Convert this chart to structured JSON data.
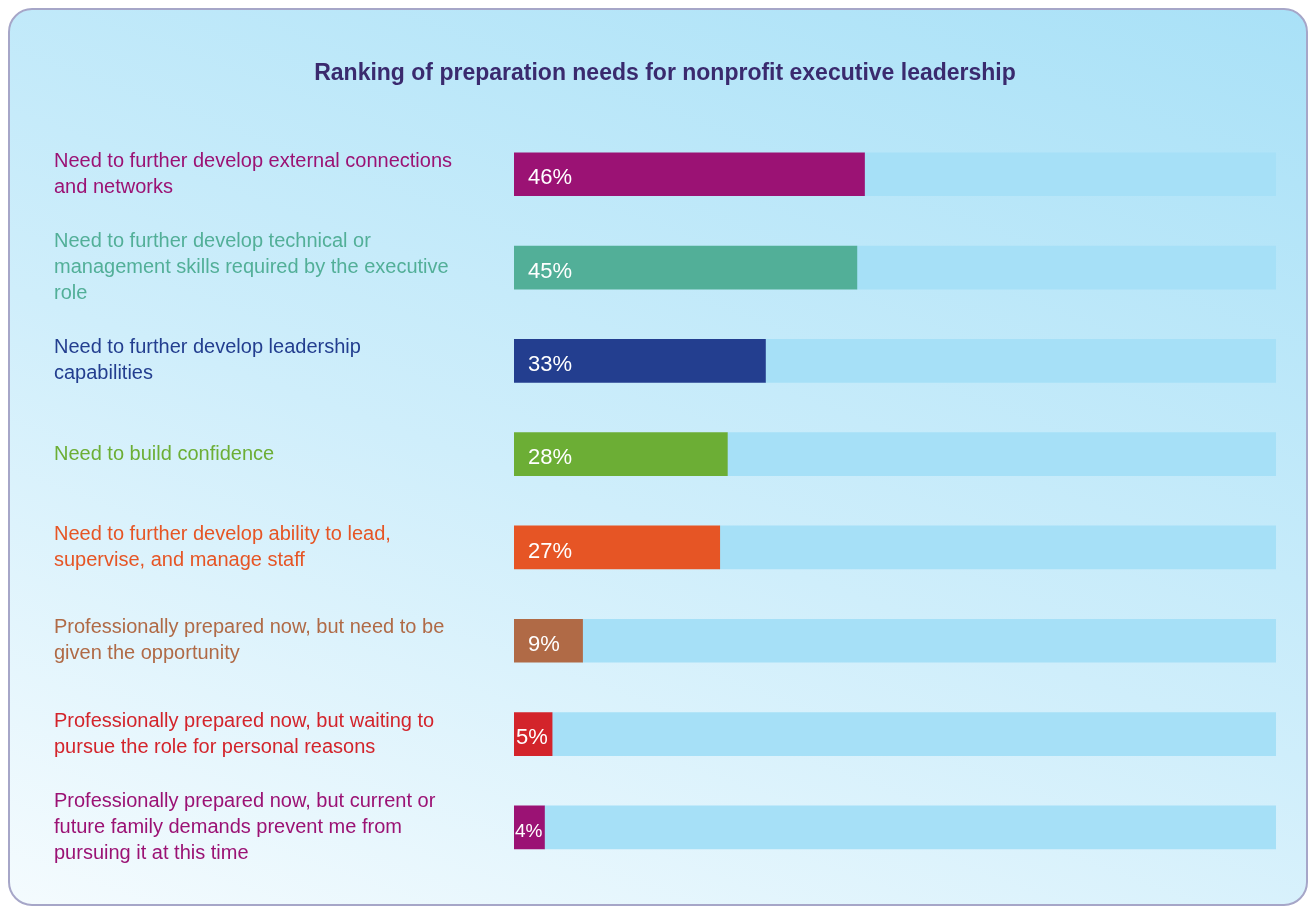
{
  "chart_data": {
    "type": "bar",
    "orientation": "horizontal",
    "title": "Ranking of preparation needs for nonprofit executive leadership",
    "categories": [
      "Need to further develop external connections and networks",
      "Need to further develop technical or management skills required by the executive role",
      "Need to further develop leadership capabilities",
      "Need to build confidence",
      "Need to further develop ability to lead, supervise, and manage staff",
      "Professionally prepared now, but need to be given the opportunity",
      "Professionally prepared now, but waiting to pursue the role for personal reasons",
      "Professionally prepared now, but current or future family demands prevent me from pursuing it at this time"
    ],
    "series": [
      {
        "values": [
          46,
          45,
          33,
          28,
          27,
          9,
          5,
          4
        ],
        "colors": [
          "#9b1274",
          "#52af98",
          "#233e8f",
          "#6cae35",
          "#e65525",
          "#b06a46",
          "#d3242b",
          "#9b1274"
        ],
        "value_labels": [
          "46%",
          "45%",
          "33%",
          "28%",
          "27%",
          "9%",
          "5%",
          "4%"
        ]
      },
      {
        "values": [
          54,
          55,
          67,
          72,
          73,
          91,
          95,
          96
        ],
        "color": "#a6e0f7"
      }
    ],
    "stacked": true,
    "xlim": [
      0,
      100
    ],
    "tick_labels": "y",
    "grid": false,
    "legend": false
  }
}
